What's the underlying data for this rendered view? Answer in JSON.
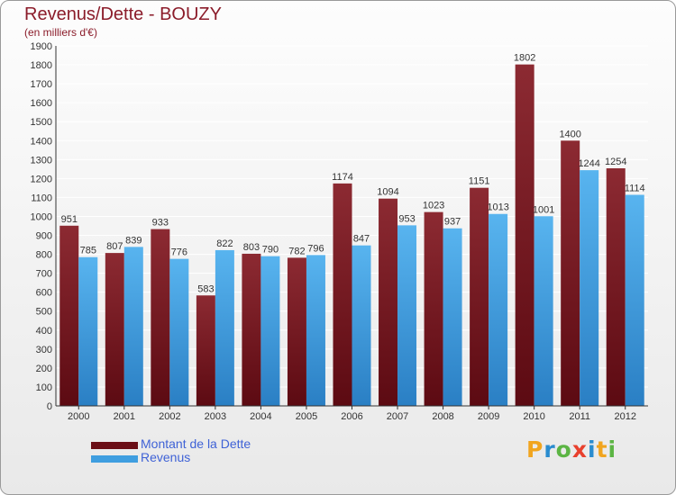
{
  "chart_data": {
    "type": "bar",
    "title": "Revenus/Dette - BOUZY",
    "subtitle": "(en milliers d'€)",
    "categories": [
      "2000",
      "2001",
      "2002",
      "2003",
      "2004",
      "2005",
      "2006",
      "2007",
      "2008",
      "2009",
      "2010",
      "2011",
      "2012"
    ],
    "series": [
      {
        "name": "Montant de la Dette",
        "color": "#7a1a22",
        "values": [
          951,
          807,
          933,
          583,
          803,
          782,
          1174,
          1094,
          1023,
          1151,
          1802,
          1400,
          1254
        ]
      },
      {
        "name": "Revenus",
        "color": "#3f9ee0",
        "values": [
          785,
          839,
          776,
          822,
          790,
          796,
          847,
          953,
          937,
          1013,
          1001,
          1244,
          1114
        ]
      }
    ],
    "ylim": [
      0,
      1900
    ],
    "ytick_step": 100,
    "grid": true,
    "legend_position": "bottom-left"
  },
  "legend": [
    {
      "label": "Montant de la Dette",
      "color": "#6a0e16"
    },
    {
      "label": "Revenus",
      "color": "#3f9ee0"
    }
  ],
  "logo": {
    "text": "Proxiti"
  }
}
